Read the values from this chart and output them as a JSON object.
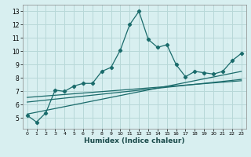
{
  "xlabel": "Humidex (Indice chaleur)",
  "ylabel": "",
  "bg_color": "#d8eff0",
  "line_color": "#1a6b6b",
  "grid_color": "#b8d8d8",
  "x": [
    0,
    1,
    2,
    3,
    4,
    5,
    6,
    7,
    8,
    9,
    10,
    11,
    12,
    13,
    14,
    15,
    16,
    17,
    18,
    19,
    20,
    21,
    22,
    23
  ],
  "y_main": [
    5.2,
    4.7,
    5.4,
    7.1,
    7.0,
    7.4,
    7.6,
    7.6,
    8.5,
    8.8,
    10.1,
    12.0,
    13.0,
    10.9,
    10.3,
    10.5,
    9.0,
    8.1,
    8.5,
    8.4,
    8.3,
    8.5,
    9.3,
    9.85
  ],
  "trend1_x": [
    0,
    23
  ],
  "trend1_y": [
    5.3,
    8.5
  ],
  "trend2_x": [
    0,
    23
  ],
  "trend2_y": [
    6.2,
    7.9
  ],
  "trend3_x": [
    0,
    23
  ],
  "trend3_y": [
    6.55,
    7.8
  ],
  "xlim": [
    -0.5,
    23.5
  ],
  "ylim": [
    4.2,
    13.5
  ],
  "yticks": [
    5,
    6,
    7,
    8,
    9,
    10,
    11,
    12,
    13
  ],
  "xticks": [
    0,
    1,
    2,
    3,
    4,
    5,
    6,
    7,
    8,
    9,
    10,
    11,
    12,
    13,
    14,
    15,
    16,
    17,
    18,
    19,
    20,
    21,
    22,
    23
  ]
}
